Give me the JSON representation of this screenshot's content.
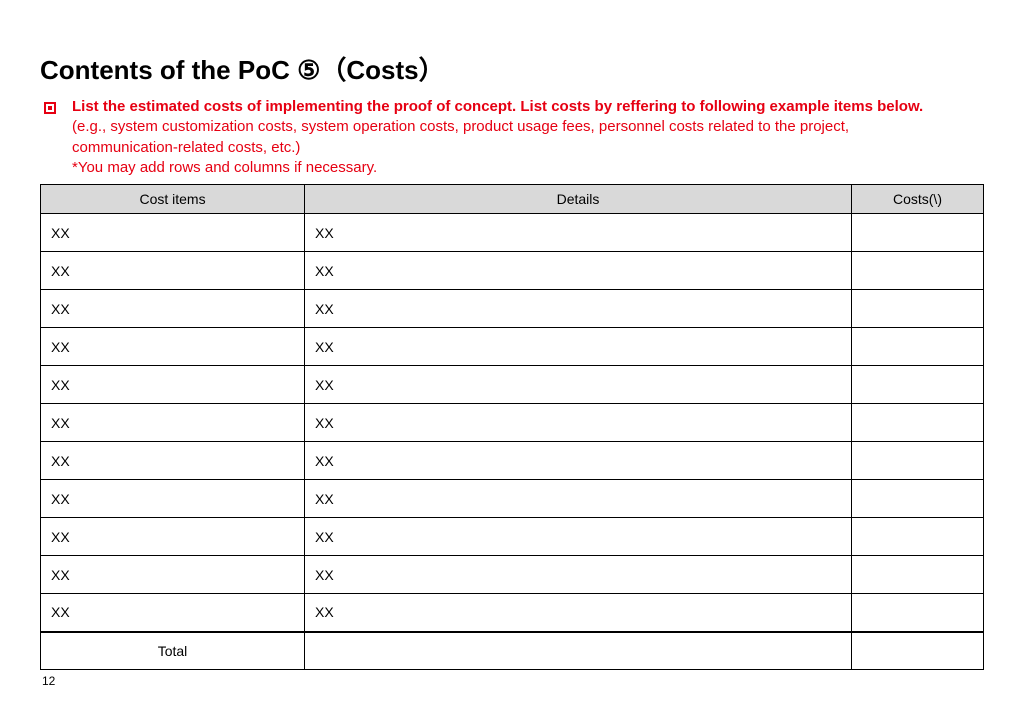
{
  "title": "Contents of the PoC ⑤（Costs）",
  "instruction": {
    "line1": "List the estimated costs of implementing the proof of concept. List costs by reffering to following example items below.",
    "line2": "(e.g., system customization costs, system operation costs, product usage fees, personnel costs related to the project,",
    "line3": "communication-related costs, etc.)",
    "line4": "*You may add rows and columns if necessary."
  },
  "table": {
    "headers": {
      "items": "Cost items",
      "details": "Details",
      "costs": "Costs(\\)"
    },
    "rows": [
      {
        "item": "XX",
        "details": "XX",
        "cost": ""
      },
      {
        "item": "XX",
        "details": "XX",
        "cost": ""
      },
      {
        "item": "XX",
        "details": "XX",
        "cost": ""
      },
      {
        "item": "XX",
        "details": "XX",
        "cost": ""
      },
      {
        "item": "XX",
        "details": "XX",
        "cost": ""
      },
      {
        "item": "XX",
        "details": "XX",
        "cost": ""
      },
      {
        "item": "XX",
        "details": "XX",
        "cost": ""
      },
      {
        "item": "XX",
        "details": "XX",
        "cost": ""
      },
      {
        "item": "XX",
        "details": "XX",
        "cost": ""
      },
      {
        "item": "XX",
        "details": "XX",
        "cost": ""
      },
      {
        "item": "XX",
        "details": "XX",
        "cost": ""
      }
    ],
    "total_label": "Total"
  },
  "page_number": "12",
  "style": {
    "accent_color": "#e60012",
    "header_bg": "#d9d9d9",
    "border_color": "#000000",
    "background": "#ffffff",
    "title_fontsize": 26,
    "body_fontsize": 15,
    "table_fontsize": 14
  }
}
